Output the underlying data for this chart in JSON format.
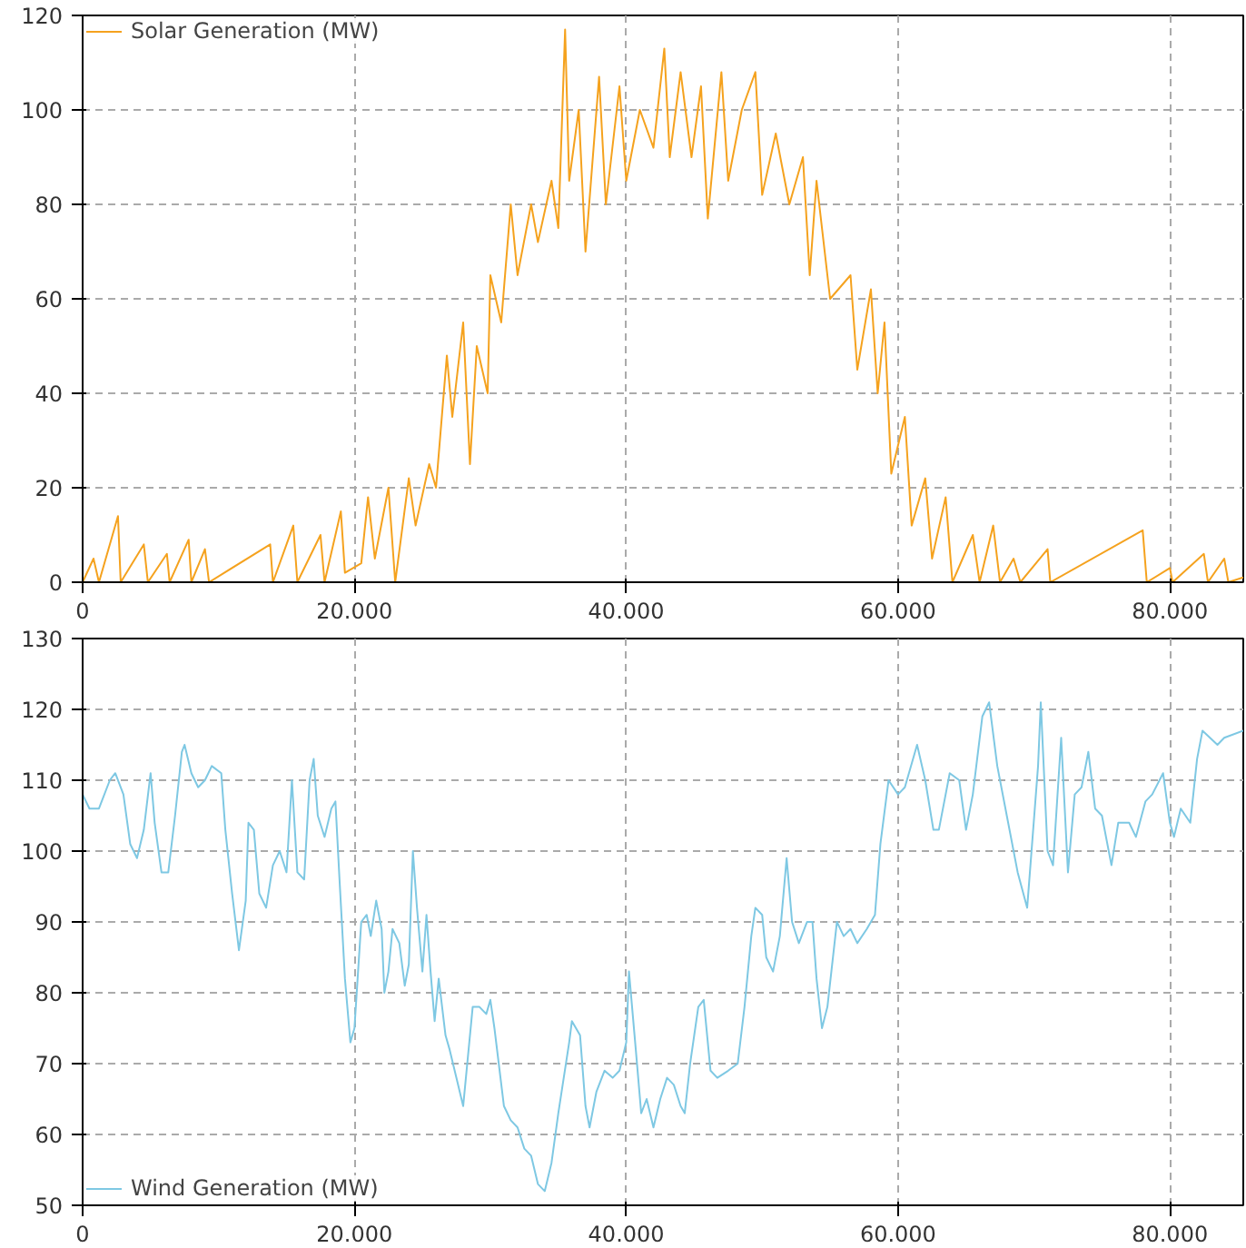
{
  "chart_data": [
    {
      "type": "line",
      "legend": "top left",
      "grid": true,
      "marker": "none",
      "line_style": "solid",
      "xlim": [
        0,
        85400
      ],
      "ylim": [
        0,
        120
      ],
      "yticks": [
        0,
        20,
        40,
        60,
        80,
        100,
        120
      ],
      "xticks": [
        0,
        {
          "value": 20000,
          "label": "20.000"
        },
        {
          "value": 40000,
          "label": "40.000"
        },
        {
          "value": 60000,
          "label": "60.000"
        },
        {
          "value": 80000,
          "label": "80.000"
        }
      ],
      "series": [
        {
          "name": "Solar Generation (MW)",
          "color": "#f5a21e",
          "x": [
            0,
            800,
            1200,
            2600,
            2800,
            4500,
            4800,
            6200,
            6400,
            7800,
            8000,
            9000,
            9300,
            13800,
            14000,
            15500,
            15800,
            17500,
            17800,
            19000,
            19300,
            20500,
            21000,
            21500,
            22500,
            23000,
            24000,
            24500,
            25500,
            26000,
            26800,
            27200,
            28000,
            28500,
            29000,
            29800,
            30000,
            30800,
            31500,
            32000,
            33000,
            33500,
            34500,
            35000,
            35500,
            35800,
            36500,
            37000,
            38000,
            38500,
            39500,
            40000,
            41000,
            42000,
            42800,
            43200,
            44000,
            44800,
            45500,
            46000,
            47000,
            47500,
            48500,
            49500,
            50000,
            51000,
            52000,
            53000,
            53500,
            54000,
            55000,
            56500,
            57000,
            58000,
            58500,
            59000,
            59500,
            60500,
            61000,
            62000,
            62500,
            63500,
            64000,
            65500,
            66000,
            67000,
            67500,
            68500,
            69000,
            71000,
            71200,
            78000,
            78300,
            80000,
            80200,
            82500,
            82800,
            84000,
            84300,
            85400
          ],
          "values": [
            0,
            5,
            0,
            14,
            0,
            8,
            0,
            6,
            0,
            9,
            0,
            7,
            0,
            8,
            0,
            12,
            0,
            10,
            0,
            15,
            2,
            4,
            18,
            5,
            20,
            0,
            22,
            12,
            25,
            20,
            48,
            35,
            55,
            25,
            50,
            40,
            65,
            55,
            80,
            65,
            80,
            72,
            85,
            75,
            117,
            85,
            100,
            70,
            107,
            80,
            105,
            85,
            100,
            92,
            113,
            90,
            108,
            90,
            105,
            77,
            108,
            85,
            100,
            108,
            82,
            95,
            80,
            90,
            65,
            85,
            60,
            65,
            45,
            62,
            40,
            55,
            23,
            35,
            12,
            22,
            5,
            18,
            0,
            10,
            0,
            12,
            0,
            5,
            0,
            7,
            0,
            11,
            0,
            3,
            0,
            6,
            0,
            5,
            0,
            1
          ]
        }
      ]
    },
    {
      "type": "line",
      "legend": "bottom left",
      "grid": true,
      "marker": "none",
      "line_style": "solid",
      "xlim": [
        0,
        85400
      ],
      "ylim": [
        50,
        130
      ],
      "yticks": [
        50,
        60,
        70,
        80,
        90,
        100,
        110,
        120,
        130
      ],
      "xticks": [
        0,
        {
          "value": 20000,
          "label": "20.000"
        },
        {
          "value": 40000,
          "label": "40.000"
        },
        {
          "value": 60000,
          "label": "60.000"
        },
        {
          "value": 80000,
          "label": "80.000"
        }
      ],
      "series": [
        {
          "name": "Wind Generation (MW)",
          "color": "#7ec8e3",
          "x": [
            0,
            500,
            1200,
            2000,
            2400,
            3000,
            3500,
            4000,
            4500,
            5000,
            5300,
            5800,
            6300,
            6800,
            7300,
            7500,
            8000,
            8500,
            9000,
            9500,
            10200,
            10500,
            11000,
            11500,
            12000,
            12200,
            12600,
            13000,
            13500,
            14000,
            14500,
            15000,
            15400,
            15800,
            16300,
            16700,
            17000,
            17300,
            17800,
            18300,
            18600,
            18900,
            19300,
            19700,
            20000,
            20500,
            20900,
            21200,
            21600,
            22000,
            22200,
            22500,
            22800,
            23300,
            23700,
            24000,
            24300,
            24600,
            25000,
            25300,
            25600,
            25900,
            26200,
            26700,
            27000,
            27500,
            28000,
            28700,
            29200,
            29700,
            30000,
            30300,
            31000,
            31500,
            32000,
            32500,
            33000,
            33500,
            34000,
            34500,
            35000,
            35800,
            36000,
            36600,
            37000,
            37300,
            37800,
            38400,
            39000,
            39500,
            40000,
            40200,
            40700,
            41100,
            41500,
            42000,
            42500,
            43000,
            43500,
            44000,
            44300,
            44700,
            45300,
            45700,
            46200,
            46700,
            47500,
            48200,
            48700,
            49200,
            49500,
            50000,
            50300,
            50800,
            51300,
            51800,
            52200,
            52700,
            53300,
            53700,
            54000,
            54400,
            54800,
            55500,
            56000,
            56500,
            57000,
            57700,
            58300,
            58700,
            59300,
            60000,
            60500,
            61400,
            62000,
            62600,
            63000,
            63800,
            64500,
            65000,
            65500,
            66200,
            66700,
            67300,
            68000,
            68800,
            69500,
            70300,
            70500,
            71000,
            71400,
            72000,
            72500,
            73000,
            73500,
            74000,
            74500,
            75000,
            75700,
            76200,
            77000,
            77500,
            78200,
            78700,
            79500,
            80000,
            80300,
            80800,
            81500,
            82000,
            82400,
            83500,
            84000,
            85400
          ],
          "values": [
            108,
            106,
            106,
            110,
            111,
            108,
            101,
            99,
            103,
            111,
            104,
            97,
            97,
            105,
            114,
            115,
            111,
            109,
            110,
            112,
            111,
            103,
            94,
            86,
            93,
            104,
            103,
            94,
            92,
            98,
            100,
            97,
            110,
            97,
            96,
            110,
            113,
            105,
            102,
            106,
            107,
            96,
            82,
            73,
            75,
            90,
            91,
            88,
            93,
            89,
            80,
            83,
            89,
            87,
            81,
            84,
            100,
            92,
            83,
            91,
            83,
            76,
            82,
            74,
            72,
            68,
            64,
            78,
            78,
            77,
            79,
            75,
            64,
            62,
            61,
            58,
            57,
            53,
            52,
            56,
            63,
            73,
            76,
            74,
            64,
            61,
            66,
            69,
            68,
            69,
            73,
            83,
            72,
            63,
            65,
            61,
            65,
            68,
            67,
            64,
            63,
            70,
            78,
            79,
            69,
            68,
            69,
            70,
            78,
            88,
            92,
            91,
            85,
            83,
            88,
            99,
            90,
            87,
            90,
            90,
            82,
            75,
            78,
            90,
            88,
            89,
            87,
            89,
            91,
            101,
            110,
            108,
            109,
            115,
            110,
            103,
            103,
            111,
            110,
            103,
            108,
            119,
            121,
            112,
            105,
            97,
            92,
            112,
            121,
            100,
            98,
            116,
            97,
            108,
            109,
            114,
            106,
            105,
            98,
            104,
            104,
            102,
            107,
            108,
            111,
            104,
            102,
            106,
            104,
            113,
            117,
            115,
            116,
            117
          ]
        }
      ]
    }
  ]
}
